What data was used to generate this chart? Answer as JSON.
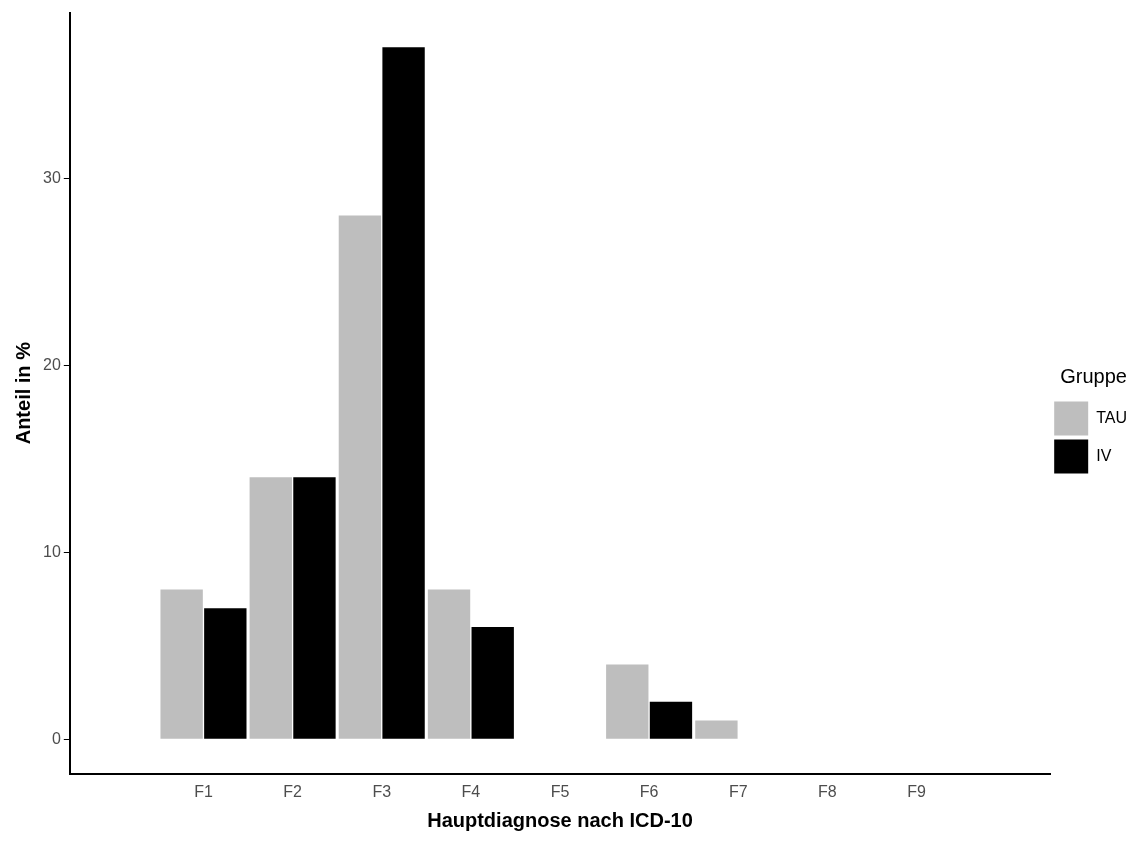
{
  "chart_data": {
    "type": "bar",
    "xlabel": "Hauptdiagnose nach ICD-10",
    "ylabel": "Anteil in %",
    "legend_title": "Gruppe",
    "legend": "right",
    "grid": false,
    "categories": [
      "F1",
      "F2",
      "F3",
      "F4",
      "F5",
      "F6",
      "F7",
      "F8",
      "F9"
    ],
    "series": [
      {
        "name": "TAU",
        "color": "#bebebe",
        "values": [
          8,
          14,
          28,
          8,
          null,
          4,
          1,
          null,
          null
        ]
      },
      {
        "name": "IV",
        "color": "#000000",
        "values": [
          7,
          14,
          37,
          6,
          null,
          2,
          null,
          null,
          null
        ]
      }
    ],
    "ylim": [
      -1.85,
      38.85
    ],
    "yticks": [
      0,
      10,
      20,
      30
    ]
  }
}
